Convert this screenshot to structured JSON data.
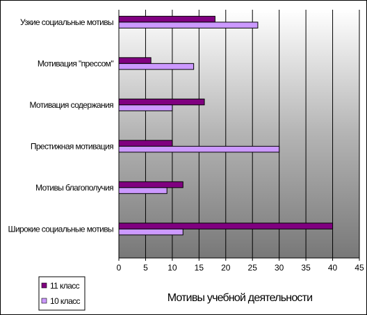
{
  "chart_data": {
    "type": "bar",
    "orientation": "horizontal",
    "categories": [
      "Узкие социальные мотивы",
      "Мотивация \"прессом\"",
      "Мотивация содержания",
      "Престижная мотивация",
      "Мотивы благополучия",
      "Широкие социальные мотивы"
    ],
    "series": [
      {
        "name": "11 класс",
        "color": "#800080",
        "values": [
          18,
          6,
          16,
          10,
          12,
          40
        ]
      },
      {
        "name": "10 класс",
        "color": "#cc99ff",
        "values": [
          26,
          14,
          10,
          30,
          9,
          12
        ]
      }
    ],
    "xlabel": "Мотивы учебной деятельности",
    "xlim": [
      0,
      45
    ],
    "xticks": [
      "0",
      "5",
      "10",
      "15",
      "20",
      "25",
      "30",
      "35",
      "40",
      "45"
    ],
    "grid": "vertical",
    "plot_background": "gradient-gray",
    "legend_position": "bottom-left"
  }
}
